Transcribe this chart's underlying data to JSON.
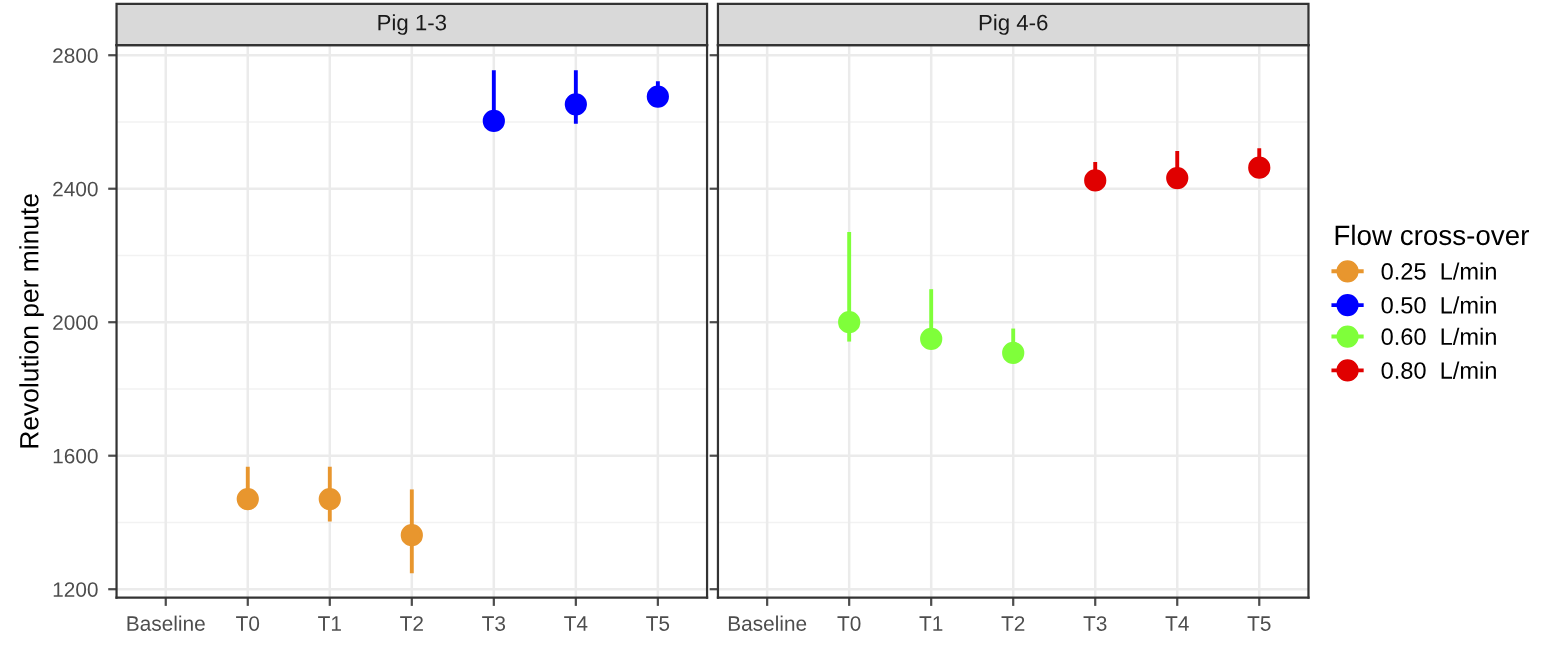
{
  "chart_data": [
    {
      "type": "scatter",
      "title": "Pig 1-3",
      "ylabel": "Revolution per minute",
      "categories": [
        "Baseline",
        "T0",
        "T1",
        "T2",
        "T3",
        "T4",
        "T5"
      ],
      "ylim": [
        1175,
        2830
      ],
      "yticks": [
        1200,
        1600,
        2000,
        2400,
        2800
      ],
      "grid": true,
      "marker": "circle",
      "legend_title": "Flow cross-over",
      "legend": "right",
      "series": [
        {
          "name": "0.25  L/min",
          "color": "#e8962e",
          "values": [
            null,
            1470,
            1470,
            1362,
            null,
            null,
            null
          ],
          "errors": [
            null,
            [
              1445,
              1567
            ],
            [
              1403,
              1567
            ],
            [
              1248,
              1499
            ],
            null,
            null,
            null
          ]
        },
        {
          "name": "0.50  L/min",
          "color": "#0000ff",
          "values": [
            null,
            null,
            null,
            null,
            2603,
            2653,
            2676
          ],
          "errors": [
            null,
            null,
            null,
            null,
            [
              2580,
              2755
            ],
            [
              2595,
              2755
            ],
            [
              2655,
              2722
            ]
          ]
        }
      ]
    },
    {
      "type": "scatter",
      "title": "Pig 4-6",
      "categories": [
        "Baseline",
        "T0",
        "T1",
        "T2",
        "T3",
        "T4",
        "T5"
      ],
      "ylim": [
        1175,
        2830
      ],
      "yticks": [
        1200,
        1600,
        2000,
        2400,
        2800
      ],
      "tick_labels": "x",
      "grid": true,
      "marker": "circle",
      "legend": "right",
      "series": [
        {
          "name": "0.60  L/min",
          "color": "#7fff3a",
          "values": [
            null,
            2000,
            1950,
            1908,
            null,
            null,
            null
          ],
          "errors": [
            null,
            [
              1942,
              2270
            ],
            [
              1925,
              2099
            ],
            [
              1890,
              1981
            ],
            null,
            null,
            null
          ]
        },
        {
          "name": "0.80  L/min",
          "color": "#e00000",
          "values": [
            null,
            null,
            null,
            null,
            2425,
            2432,
            2463
          ],
          "errors": [
            null,
            null,
            null,
            null,
            [
              2405,
              2480
            ],
            [
              2410,
              2513
            ],
            [
              2432,
              2521
            ]
          ]
        }
      ]
    }
  ]
}
